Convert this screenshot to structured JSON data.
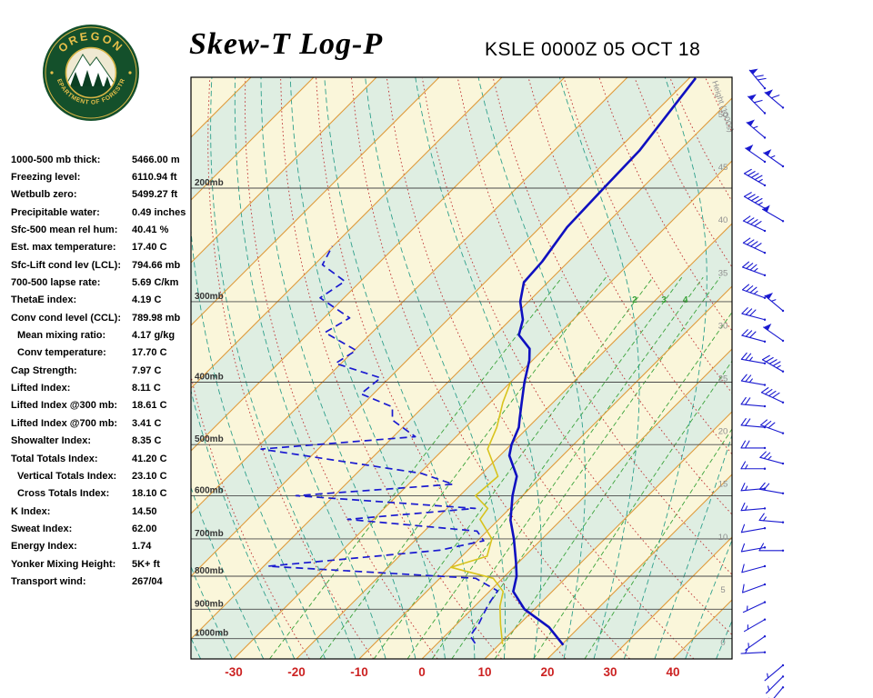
{
  "header": {
    "title": "Skew-T Log-P",
    "station_line": "KSLE 0000Z 05 OCT 18",
    "logo": {
      "arc_top": "OREGON",
      "arc_bottom": "DEPARTMENT OF FORESTRY"
    }
  },
  "sidebar": {
    "rows": [
      {
        "label": "1000-500 mb thick:",
        "value": "5466.00 m",
        "indent": false
      },
      {
        "label": "Freezing level:",
        "value": "6110.94 ft",
        "indent": false
      },
      {
        "label": "Wetbulb zero:",
        "value": "5499.27 ft",
        "indent": false
      },
      {
        "label": "Precipitable water:",
        "value": "0.49 inches",
        "indent": false
      },
      {
        "label": "Sfc-500 mean rel hum:",
        "value": "40.41 %",
        "indent": false
      },
      {
        "label": "Est. max temperature:",
        "value": "17.40 C",
        "indent": false
      },
      {
        "label": "Sfc-Lift cond lev (LCL):",
        "value": "794.66 mb",
        "indent": false
      },
      {
        "label": "700-500 lapse rate:",
        "value": "5.69 C/km",
        "indent": false
      },
      {
        "label": "ThetaE index:",
        "value": "4.19 C",
        "indent": false
      },
      {
        "label": "Conv cond level (CCL):",
        "value": "789.98 mb",
        "indent": false
      },
      {
        "label": "Mean mixing ratio:",
        "value": "4.17 g/kg",
        "indent": true
      },
      {
        "label": "Conv temperature:",
        "value": "17.70 C",
        "indent": true
      },
      {
        "label": "Cap Strength:",
        "value": "7.97 C",
        "indent": false
      },
      {
        "label": "Lifted Index:",
        "value": "8.11 C",
        "indent": false
      },
      {
        "label": "Lifted Index @300 mb:",
        "value": "18.61 C",
        "indent": false
      },
      {
        "label": "Lifted Index @700 mb:",
        "value": "3.41 C",
        "indent": false
      },
      {
        "label": "Showalter Index:",
        "value": "8.35 C",
        "indent": false
      },
      {
        "label": "Total Totals Index:",
        "value": "41.20 C",
        "indent": false
      },
      {
        "label": "Vertical Totals Index:",
        "value": "23.10 C",
        "indent": true
      },
      {
        "label": "Cross Totals Index:",
        "value": "18.10 C",
        "indent": true
      },
      {
        "label": "K Index:",
        "value": "14.50",
        "indent": false
      },
      {
        "label": "Sweat Index:",
        "value": "62.00",
        "indent": false
      },
      {
        "label": "Energy Index:",
        "value": "1.74",
        "indent": false
      },
      {
        "label": "Yonker Mixing Height:",
        "value": "5K+ ft",
        "indent": false
      },
      {
        "label": "Transport wind:",
        "value": "267/04",
        "indent": false
      }
    ]
  },
  "chart_data": {
    "type": "skew-t-log-p",
    "station": "KSLE",
    "valid_time": "0000Z 05 OCT 18",
    "pressure_axis": {
      "unit": "mb",
      "levels": [
        200,
        300,
        400,
        500,
        600,
        700,
        800,
        900,
        1000
      ]
    },
    "temp_axis": {
      "unit": "C",
      "ticks": [
        -30,
        -20,
        -10,
        0,
        10,
        20,
        30,
        40
      ]
    },
    "height_axis": {
      "label": "Height (1000s)",
      "unit": "kft",
      "ticks": [
        0,
        5,
        10,
        15,
        20,
        25,
        30,
        35,
        40,
        45,
        50
      ]
    },
    "mixing_ratio_lines_gkg": [
      0.5,
      1,
      2,
      3,
      4,
      5,
      8,
      12,
      20
    ],
    "mixing_ratio_labels": [
      2,
      3,
      4
    ],
    "series": {
      "temperature": {
        "name": "Temperature",
        "units": [
          "mb",
          "C"
        ],
        "points": [
          [
            1023,
            20.3
          ],
          [
            960,
            15.2
          ],
          [
            900,
            8.4
          ],
          [
            845,
            3.8
          ],
          [
            800,
            1.9
          ],
          [
            760,
            -0.5
          ],
          [
            700,
            -4.5
          ],
          [
            655,
            -8.0
          ],
          [
            600,
            -11.6
          ],
          [
            560,
            -14.0
          ],
          [
            520,
            -18.5
          ],
          [
            500,
            -19.9
          ],
          [
            470,
            -21.5
          ],
          [
            455,
            -22.8
          ],
          [
            430,
            -25.0
          ],
          [
            400,
            -27.8
          ],
          [
            370,
            -30.5
          ],
          [
            355,
            -32.3
          ],
          [
            338,
            -36.2
          ],
          [
            320,
            -38.0
          ],
          [
            300,
            -41.3
          ],
          [
            280,
            -43.8
          ],
          [
            260,
            -44.2
          ],
          [
            230,
            -45.7
          ],
          [
            200,
            -46.1
          ],
          [
            175,
            -46.4
          ],
          [
            135,
            -49.0
          ]
        ]
      },
      "dewpoint": {
        "name": "Dewpoint",
        "units": [
          "mb",
          "C"
        ],
        "points": [
          [
            1017,
            6.0
          ],
          [
            990,
            4.0
          ],
          [
            950,
            3.5
          ],
          [
            885,
            1.9
          ],
          [
            843,
            1.2
          ],
          [
            806,
            -4.3
          ],
          [
            772,
            -39.3
          ],
          [
            729,
            -14.5
          ],
          [
            705,
            -9.0
          ],
          [
            681,
            -11.6
          ],
          [
            653,
            -34.1
          ],
          [
            628,
            -15.5
          ],
          [
            600,
            -46.1
          ],
          [
            576,
            -22.9
          ],
          [
            554,
            -29.7
          ],
          [
            508,
            -59.1
          ],
          [
            486,
            -36.5
          ],
          [
            458,
            -42.8
          ],
          [
            437,
            -44.9
          ],
          [
            417,
            -52.0
          ],
          [
            394,
            -51.4
          ],
          [
            374,
            -60.9
          ],
          [
            357,
            -59.7
          ],
          [
            335,
            -67.5
          ],
          [
            318,
            -65.9
          ],
          [
            296,
            -73.8
          ],
          [
            279,
            -72.5
          ],
          [
            263,
            -78.7
          ],
          [
            246,
            -80.1
          ]
        ]
      },
      "wetbulb": {
        "name": "Wet-bulb",
        "units": [
          "mb",
          "C"
        ],
        "points": [
          [
            1020,
            10.5
          ],
          [
            950,
            7.0
          ],
          [
            890,
            4.0
          ],
          [
            845,
            2.2
          ],
          [
            806,
            -1.5
          ],
          [
            775,
            -10.0
          ],
          [
            745,
            -6.0
          ],
          [
            700,
            -8.0
          ],
          [
            653,
            -13.0
          ],
          [
            628,
            -13.5
          ],
          [
            600,
            -17.5
          ],
          [
            560,
            -17.0
          ],
          [
            508,
            -23.0
          ],
          [
            470,
            -25.0
          ],
          [
            430,
            -28.0
          ],
          [
            400,
            -30.0
          ]
        ]
      }
    },
    "wind_barbs": {
      "units": [
        "mb",
        "deg",
        "kt",
        "column"
      ],
      "points": [
        [
          140,
          320,
          70,
          0
        ],
        [
          153,
          315,
          60,
          0
        ],
        [
          167,
          310,
          55,
          0
        ],
        [
          182,
          305,
          50,
          0
        ],
        [
          198,
          300,
          45,
          0
        ],
        [
          215,
          300,
          45,
          0
        ],
        [
          233,
          295,
          40,
          0
        ],
        [
          252,
          295,
          40,
          0
        ],
        [
          273,
          290,
          35,
          0
        ],
        [
          296,
          290,
          35,
          0
        ],
        [
          320,
          285,
          30,
          0
        ],
        [
          346,
          285,
          30,
          0
        ],
        [
          374,
          280,
          25,
          0
        ],
        [
          404,
          280,
          25,
          0
        ],
        [
          436,
          275,
          20,
          0
        ],
        [
          470,
          275,
          20,
          0
        ],
        [
          506,
          270,
          20,
          0
        ],
        [
          545,
          270,
          15,
          0
        ],
        [
          585,
          265,
          15,
          0
        ],
        [
          628,
          265,
          15,
          0
        ],
        [
          674,
          260,
          10,
          0
        ],
        [
          722,
          260,
          10,
          0
        ],
        [
          772,
          255,
          10,
          0
        ],
        [
          824,
          250,
          8,
          0
        ],
        [
          878,
          245,
          6,
          0
        ],
        [
          934,
          240,
          5,
          0
        ],
        [
          992,
          235,
          5,
          0
        ],
        [
          1050,
          267,
          4,
          0
        ],
        [
          150,
          310,
          60,
          1
        ],
        [
          185,
          305,
          55,
          1
        ],
        [
          225,
          300,
          50,
          1
        ],
        [
          310,
          310,
          55,
          1
        ],
        [
          345,
          305,
          50,
          1
        ],
        [
          385,
          300,
          45,
          1
        ],
        [
          430,
          295,
          40,
          1
        ],
        [
          480,
          290,
          30,
          1
        ],
        [
          535,
          285,
          25,
          1
        ],
        [
          595,
          280,
          20,
          1
        ],
        [
          660,
          275,
          15,
          1
        ],
        [
          730,
          270,
          10,
          1
        ],
        [
          1100,
          230,
          5,
          1
        ],
        [
          1145,
          225,
          4,
          1
        ],
        [
          1190,
          220,
          3,
          1
        ]
      ]
    },
    "colors": {
      "temperature": "#0f10c0",
      "dewpoint": "#1a1ad0",
      "wetbulb": "#d8c31d",
      "isotherm": "#df9a3a",
      "dry_adiabat": "#c03a3a",
      "moist_adiabat": "#2fa08c",
      "mixing_ratio": "#3aa33a",
      "band_cream": "#faf6da",
      "band_mint": "#dfeee2",
      "pressure_line": "#4a4a4a",
      "pressure_label": "#333333",
      "temp_label": "#cc2222",
      "height_label": "#8f8f8f",
      "barb": "#1a1ad0"
    }
  }
}
